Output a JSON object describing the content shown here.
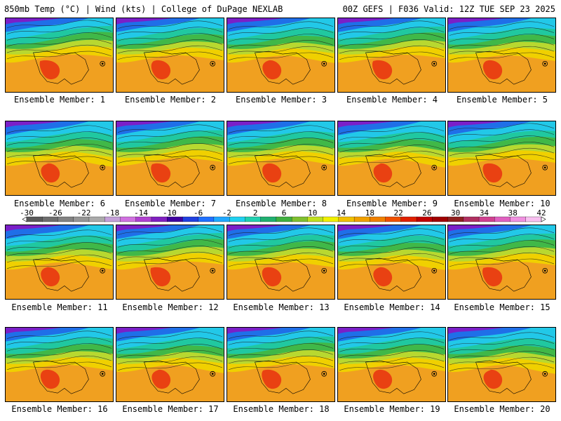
{
  "header": {
    "left": "850mb Temp (°C) | Wind (kts) | College of DuPage NEXLAB",
    "right": "00Z GEFS | F036 Valid: 12Z TUE SEP 23 2025"
  },
  "members": [
    "Ensemble Member: 1",
    "Ensemble Member: 2",
    "Ensemble Member: 3",
    "Ensemble Member: 4",
    "Ensemble Member: 5",
    "Ensemble Member: 6",
    "Ensemble Member: 7",
    "Ensemble Member: 8",
    "Ensemble Member: 9",
    "Ensemble Member: 10",
    "Ensemble Member: 11",
    "Ensemble Member: 12",
    "Ensemble Member: 13",
    "Ensemble Member: 14",
    "Ensemble Member: 15",
    "Ensemble Member: 16",
    "Ensemble Member: 17",
    "Ensemble Member: 18",
    "Ensemble Member: 19",
    "Ensemble Member: 20"
  ],
  "colorbar": {
    "ticks": [
      "-30",
      "-26",
      "-22",
      "-18",
      "-14",
      "-10",
      "-6",
      "-2",
      "2",
      "6",
      "10",
      "14",
      "18",
      "22",
      "26",
      "30",
      "34",
      "38",
      "42"
    ],
    "colors": [
      "#5a5a5a",
      "#6e6e6e",
      "#828282",
      "#969696",
      "#aaaaaa",
      "#c4a0d8",
      "#d070e0",
      "#b040d0",
      "#8020c0",
      "#4000a0",
      "#2040e0",
      "#2070ff",
      "#20a8ff",
      "#20d0f0",
      "#20d0b0",
      "#20b070",
      "#40b040",
      "#80c030",
      "#c0e020",
      "#f0f000",
      "#f0c000",
      "#f0a000",
      "#f08000",
      "#f05000",
      "#e02000",
      "#c00000",
      "#a00000",
      "#902020",
      "#b03060",
      "#d04090",
      "#e060c0",
      "#f090e0",
      "#f8c0f0"
    ]
  },
  "map_colors": {
    "deep_purple": "#7a1fc8",
    "blue": "#1f6fe8",
    "cyan": "#22c8e8",
    "teal": "#20c8a0",
    "green": "#40b848",
    "yellow_green": "#b8d830",
    "yellow": "#f0d000",
    "orange": "#f0a020",
    "red": "#e83010"
  }
}
